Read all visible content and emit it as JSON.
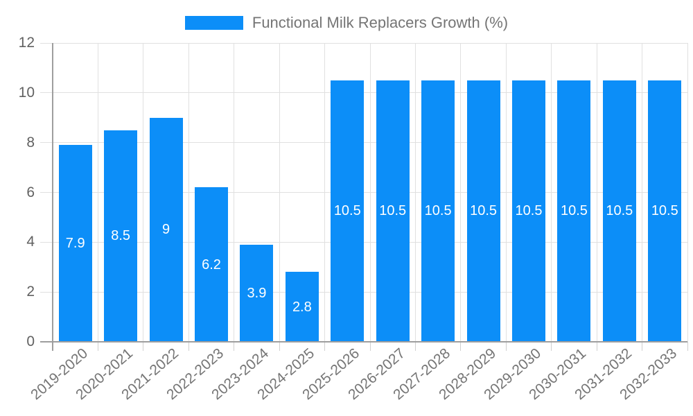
{
  "chart_data": {
    "type": "bar",
    "title": "Functional Milk Replacers Growth (%)",
    "categories": [
      "2019-2020",
      "2020-2021",
      "2021-2022",
      "2022-2023",
      "2023-2024",
      "2024-2025",
      "2025-2026",
      "2026-2027",
      "2027-2028",
      "2028-2029",
      "2029-2030",
      "2030-2031",
      "2031-2032",
      "2032-2033"
    ],
    "values": [
      7.9,
      8.5,
      9,
      6.2,
      3.9,
      2.8,
      10.5,
      10.5,
      10.5,
      10.5,
      10.5,
      10.5,
      10.5,
      10.5
    ],
    "xlabel": "",
    "ylabel": "",
    "ylim": [
      0,
      12
    ],
    "yticks": [
      0,
      2,
      4,
      6,
      8,
      10,
      12
    ],
    "grid": true,
    "legend_position": "top",
    "bar_label_position": "center",
    "colors": {
      "bar": "#0c8ef8",
      "bar_label": "#ffffff",
      "grid": "#e0e0e0",
      "axis": "#9e9e9e",
      "tick": "#cfcfcf",
      "axis_text": "#616161",
      "label_text": "#757575"
    }
  }
}
